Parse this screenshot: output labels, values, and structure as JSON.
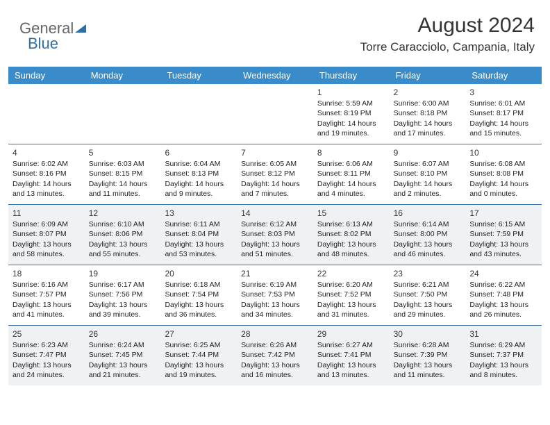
{
  "logo": {
    "text1": "General",
    "text2": "Blue"
  },
  "header": {
    "month": "August 2024",
    "location": "Torre Caracciolo, Campania, Italy"
  },
  "colors": {
    "header_bg": "#3a8bc9",
    "week_divider": "#3a6fa8",
    "shaded_bg": "#eef2f5",
    "logo_accent": "#2f6fa8"
  },
  "dow": [
    "Sunday",
    "Monday",
    "Tuesday",
    "Wednesday",
    "Thursday",
    "Friday",
    "Saturday"
  ],
  "days": [
    {
      "n": "",
      "sr": "",
      "ss": "",
      "dl": "",
      "shaded": false
    },
    {
      "n": "",
      "sr": "",
      "ss": "",
      "dl": "",
      "shaded": false
    },
    {
      "n": "",
      "sr": "",
      "ss": "",
      "dl": "",
      "shaded": false
    },
    {
      "n": "",
      "sr": "",
      "ss": "",
      "dl": "",
      "shaded": false
    },
    {
      "n": "1",
      "sr": "Sunrise: 5:59 AM",
      "ss": "Sunset: 8:19 PM",
      "dl": "Daylight: 14 hours and 19 minutes.",
      "shaded": false
    },
    {
      "n": "2",
      "sr": "Sunrise: 6:00 AM",
      "ss": "Sunset: 8:18 PM",
      "dl": "Daylight: 14 hours and 17 minutes.",
      "shaded": false
    },
    {
      "n": "3",
      "sr": "Sunrise: 6:01 AM",
      "ss": "Sunset: 8:17 PM",
      "dl": "Daylight: 14 hours and 15 minutes.",
      "shaded": false
    },
    {
      "n": "4",
      "sr": "Sunrise: 6:02 AM",
      "ss": "Sunset: 8:16 PM",
      "dl": "Daylight: 14 hours and 13 minutes.",
      "shaded": false
    },
    {
      "n": "5",
      "sr": "Sunrise: 6:03 AM",
      "ss": "Sunset: 8:15 PM",
      "dl": "Daylight: 14 hours and 11 minutes.",
      "shaded": false
    },
    {
      "n": "6",
      "sr": "Sunrise: 6:04 AM",
      "ss": "Sunset: 8:13 PM",
      "dl": "Daylight: 14 hours and 9 minutes.",
      "shaded": false
    },
    {
      "n": "7",
      "sr": "Sunrise: 6:05 AM",
      "ss": "Sunset: 8:12 PM",
      "dl": "Daylight: 14 hours and 7 minutes.",
      "shaded": false
    },
    {
      "n": "8",
      "sr": "Sunrise: 6:06 AM",
      "ss": "Sunset: 8:11 PM",
      "dl": "Daylight: 14 hours and 4 minutes.",
      "shaded": false
    },
    {
      "n": "9",
      "sr": "Sunrise: 6:07 AM",
      "ss": "Sunset: 8:10 PM",
      "dl": "Daylight: 14 hours and 2 minutes.",
      "shaded": false
    },
    {
      "n": "10",
      "sr": "Sunrise: 6:08 AM",
      "ss": "Sunset: 8:08 PM",
      "dl": "Daylight: 14 hours and 0 minutes.",
      "shaded": false
    },
    {
      "n": "11",
      "sr": "Sunrise: 6:09 AM",
      "ss": "Sunset: 8:07 PM",
      "dl": "Daylight: 13 hours and 58 minutes.",
      "shaded": true
    },
    {
      "n": "12",
      "sr": "Sunrise: 6:10 AM",
      "ss": "Sunset: 8:06 PM",
      "dl": "Daylight: 13 hours and 55 minutes.",
      "shaded": true
    },
    {
      "n": "13",
      "sr": "Sunrise: 6:11 AM",
      "ss": "Sunset: 8:04 PM",
      "dl": "Daylight: 13 hours and 53 minutes.",
      "shaded": true
    },
    {
      "n": "14",
      "sr": "Sunrise: 6:12 AM",
      "ss": "Sunset: 8:03 PM",
      "dl": "Daylight: 13 hours and 51 minutes.",
      "shaded": true
    },
    {
      "n": "15",
      "sr": "Sunrise: 6:13 AM",
      "ss": "Sunset: 8:02 PM",
      "dl": "Daylight: 13 hours and 48 minutes.",
      "shaded": true
    },
    {
      "n": "16",
      "sr": "Sunrise: 6:14 AM",
      "ss": "Sunset: 8:00 PM",
      "dl": "Daylight: 13 hours and 46 minutes.",
      "shaded": true
    },
    {
      "n": "17",
      "sr": "Sunrise: 6:15 AM",
      "ss": "Sunset: 7:59 PM",
      "dl": "Daylight: 13 hours and 43 minutes.",
      "shaded": true
    },
    {
      "n": "18",
      "sr": "Sunrise: 6:16 AM",
      "ss": "Sunset: 7:57 PM",
      "dl": "Daylight: 13 hours and 41 minutes.",
      "shaded": false
    },
    {
      "n": "19",
      "sr": "Sunrise: 6:17 AM",
      "ss": "Sunset: 7:56 PM",
      "dl": "Daylight: 13 hours and 39 minutes.",
      "shaded": false
    },
    {
      "n": "20",
      "sr": "Sunrise: 6:18 AM",
      "ss": "Sunset: 7:54 PM",
      "dl": "Daylight: 13 hours and 36 minutes.",
      "shaded": false
    },
    {
      "n": "21",
      "sr": "Sunrise: 6:19 AM",
      "ss": "Sunset: 7:53 PM",
      "dl": "Daylight: 13 hours and 34 minutes.",
      "shaded": false
    },
    {
      "n": "22",
      "sr": "Sunrise: 6:20 AM",
      "ss": "Sunset: 7:52 PM",
      "dl": "Daylight: 13 hours and 31 minutes.",
      "shaded": false
    },
    {
      "n": "23",
      "sr": "Sunrise: 6:21 AM",
      "ss": "Sunset: 7:50 PM",
      "dl": "Daylight: 13 hours and 29 minutes.",
      "shaded": false
    },
    {
      "n": "24",
      "sr": "Sunrise: 6:22 AM",
      "ss": "Sunset: 7:48 PM",
      "dl": "Daylight: 13 hours and 26 minutes.",
      "shaded": false
    },
    {
      "n": "25",
      "sr": "Sunrise: 6:23 AM",
      "ss": "Sunset: 7:47 PM",
      "dl": "Daylight: 13 hours and 24 minutes.",
      "shaded": true
    },
    {
      "n": "26",
      "sr": "Sunrise: 6:24 AM",
      "ss": "Sunset: 7:45 PM",
      "dl": "Daylight: 13 hours and 21 minutes.",
      "shaded": true
    },
    {
      "n": "27",
      "sr": "Sunrise: 6:25 AM",
      "ss": "Sunset: 7:44 PM",
      "dl": "Daylight: 13 hours and 19 minutes.",
      "shaded": true
    },
    {
      "n": "28",
      "sr": "Sunrise: 6:26 AM",
      "ss": "Sunset: 7:42 PM",
      "dl": "Daylight: 13 hours and 16 minutes.",
      "shaded": true
    },
    {
      "n": "29",
      "sr": "Sunrise: 6:27 AM",
      "ss": "Sunset: 7:41 PM",
      "dl": "Daylight: 13 hours and 13 minutes.",
      "shaded": true
    },
    {
      "n": "30",
      "sr": "Sunrise: 6:28 AM",
      "ss": "Sunset: 7:39 PM",
      "dl": "Daylight: 13 hours and 11 minutes.",
      "shaded": true
    },
    {
      "n": "31",
      "sr": "Sunrise: 6:29 AM",
      "ss": "Sunset: 7:37 PM",
      "dl": "Daylight: 13 hours and 8 minutes.",
      "shaded": true
    }
  ]
}
